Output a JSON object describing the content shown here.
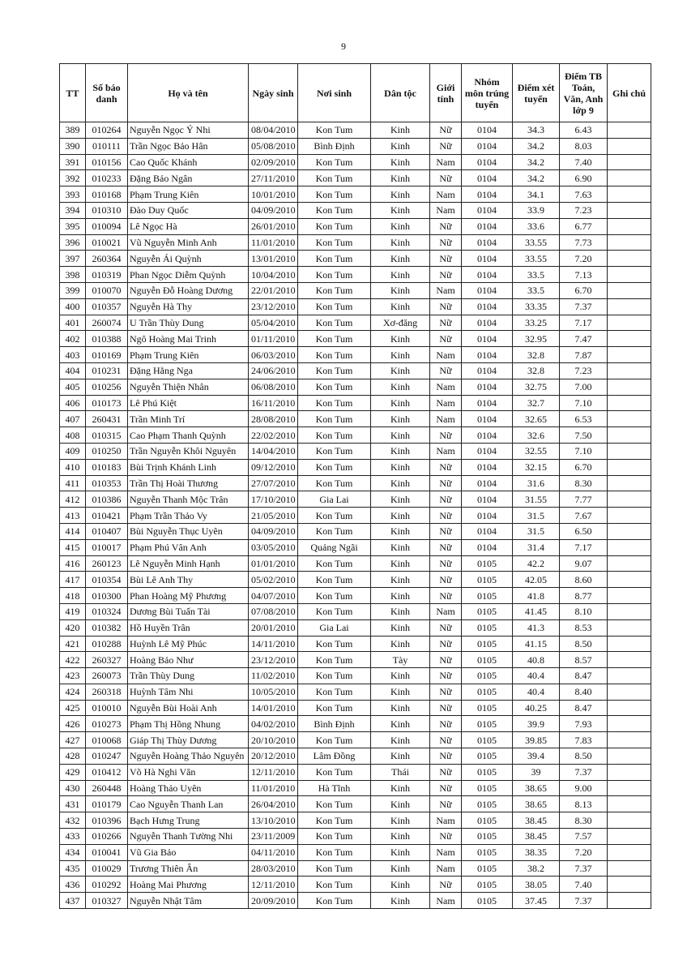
{
  "page_number": "9",
  "table": {
    "headers": [
      "TT",
      "Số báo danh",
      "Họ và tên",
      "Ngày sinh",
      "Nơi sinh",
      "Dân tộc",
      "Giới tính",
      "Nhóm môn trúng tuyển",
      "Điểm xét tuyển",
      "Điểm TB Toán, Văn, Anh lớp 9",
      "Ghi chú"
    ],
    "rows": [
      [
        "389",
        "010264",
        "Nguyễn Ngọc Ý Nhi",
        "08/04/2010",
        "Kon Tum",
        "Kinh",
        "Nữ",
        "0104",
        "34.3",
        "6.43",
        ""
      ],
      [
        "390",
        "010111",
        "Trần Ngọc Bảo Hân",
        "05/08/2010",
        "Bình Định",
        "Kinh",
        "Nữ",
        "0104",
        "34.2",
        "8.03",
        ""
      ],
      [
        "391",
        "010156",
        "Cao Quốc Khánh",
        "02/09/2010",
        "Kon Tum",
        "Kinh",
        "Nam",
        "0104",
        "34.2",
        "7.40",
        ""
      ],
      [
        "392",
        "010233",
        "Đặng Bảo Ngân",
        "27/11/2010",
        "Kon Tum",
        "Kinh",
        "Nữ",
        "0104",
        "34.2",
        "6.90",
        ""
      ],
      [
        "393",
        "010168",
        "Phạm Trung Kiên",
        "10/01/2010",
        "Kon Tum",
        "Kinh",
        "Nam",
        "0104",
        "34.1",
        "7.63",
        ""
      ],
      [
        "394",
        "010310",
        "Đào Duy Quốc",
        "04/09/2010",
        "Kon Tum",
        "Kinh",
        "Nam",
        "0104",
        "33.9",
        "7.23",
        ""
      ],
      [
        "395",
        "010094",
        "Lê Ngọc Hà",
        "26/01/2010",
        "Kon Tum",
        "Kinh",
        "Nữ",
        "0104",
        "33.6",
        "6.77",
        ""
      ],
      [
        "396",
        "010021",
        "Vũ Nguyễn Minh Anh",
        "11/01/2010",
        "Kon Tum",
        "Kinh",
        "Nữ",
        "0104",
        "33.55",
        "7.73",
        ""
      ],
      [
        "397",
        "260364",
        "Nguyễn Ái Quỳnh",
        "13/01/2010",
        "Kon Tum",
        "Kinh",
        "Nữ",
        "0104",
        "33.55",
        "7.20",
        ""
      ],
      [
        "398",
        "010319",
        "Phan Ngọc Diễm Quỳnh",
        "10/04/2010",
        "Kon Tum",
        "Kinh",
        "Nữ",
        "0104",
        "33.5",
        "7.13",
        ""
      ],
      [
        "399",
        "010070",
        "Nguyễn Đỗ Hoàng Dương",
        "22/01/2010",
        "Kon Tum",
        "Kinh",
        "Nam",
        "0104",
        "33.5",
        "6.70",
        ""
      ],
      [
        "400",
        "010357",
        "Nguyễn Hà Thy",
        "23/12/2010",
        "Kon Tum",
        "Kinh",
        "Nữ",
        "0104",
        "33.35",
        "7.37",
        ""
      ],
      [
        "401",
        "260074",
        "U Trần Thùy Dung",
        "05/04/2010",
        "Kon Tum",
        "Xơ-đăng",
        "Nữ",
        "0104",
        "33.25",
        "7.17",
        ""
      ],
      [
        "402",
        "010388",
        "Ngô Hoàng Mai Trinh",
        "01/11/2010",
        "Kon Tum",
        "Kinh",
        "Nữ",
        "0104",
        "32.95",
        "7.47",
        ""
      ],
      [
        "403",
        "010169",
        "Phạm Trung Kiên",
        "06/03/2010",
        "Kon Tum",
        "Kinh",
        "Nam",
        "0104",
        "32.8",
        "7.87",
        ""
      ],
      [
        "404",
        "010231",
        "Đặng Hằng Nga",
        "24/06/2010",
        "Kon Tum",
        "Kinh",
        "Nữ",
        "0104",
        "32.8",
        "7.23",
        ""
      ],
      [
        "405",
        "010256",
        "Nguyễn Thiện Nhân",
        "06/08/2010",
        "Kon Tum",
        "Kinh",
        "Nam",
        "0104",
        "32.75",
        "7.00",
        ""
      ],
      [
        "406",
        "010173",
        "Lê Phú Kiệt",
        "16/11/2010",
        "Kon Tum",
        "Kinh",
        "Nam",
        "0104",
        "32.7",
        "7.10",
        ""
      ],
      [
        "407",
        "260431",
        "Trần Minh Trí",
        "28/08/2010",
        "Kon Tum",
        "Kinh",
        "Nam",
        "0104",
        "32.65",
        "6.53",
        ""
      ],
      [
        "408",
        "010315",
        "Cao Phạm Thanh Quỳnh",
        "22/02/2010",
        "Kon Tum",
        "Kinh",
        "Nữ",
        "0104",
        "32.6",
        "7.50",
        ""
      ],
      [
        "409",
        "010250",
        "Trần Nguyễn Khôi Nguyên",
        "14/04/2010",
        "Kon Tum",
        "Kinh",
        "Nam",
        "0104",
        "32.55",
        "7.10",
        ""
      ],
      [
        "410",
        "010183",
        "Bùi Trịnh Khánh Linh",
        "09/12/2010",
        "Kon Tum",
        "Kinh",
        "Nữ",
        "0104",
        "32.15",
        "6.70",
        ""
      ],
      [
        "411",
        "010353",
        "Trần Thị Hoài Thương",
        "27/07/2010",
        "Kon Tum",
        "Kinh",
        "Nữ",
        "0104",
        "31.6",
        "8.30",
        ""
      ],
      [
        "412",
        "010386",
        "Nguyễn Thanh Mộc Trân",
        "17/10/2010",
        "Gia Lai",
        "Kinh",
        "Nữ",
        "0104",
        "31.55",
        "7.77",
        ""
      ],
      [
        "413",
        "010421",
        "Phạm Trần Thảo Vy",
        "21/05/2010",
        "Kon Tum",
        "Kinh",
        "Nữ",
        "0104",
        "31.5",
        "7.67",
        ""
      ],
      [
        "414",
        "010407",
        "Bùi Nguyễn Thục Uyên",
        "04/09/2010",
        "Kon Tum",
        "Kinh",
        "Nữ",
        "0104",
        "31.5",
        "6.50",
        ""
      ],
      [
        "415",
        "010017",
        "Phạm Phú Vân Anh",
        "03/05/2010",
        "Quảng Ngãi",
        "Kinh",
        "Nữ",
        "0104",
        "31.4",
        "7.17",
        ""
      ],
      [
        "416",
        "260123",
        "Lê Nguyễn Minh Hạnh",
        "01/01/2010",
        "Kon Tum",
        "Kinh",
        "Nữ",
        "0105",
        "42.2",
        "9.07",
        ""
      ],
      [
        "417",
        "010354",
        "Bùi Lê Anh Thy",
        "05/02/2010",
        "Kon Tum",
        "Kinh",
        "Nữ",
        "0105",
        "42.05",
        "8.60",
        ""
      ],
      [
        "418",
        "010300",
        "Phan Hoàng Mỹ Phương",
        "04/07/2010",
        "Kon Tum",
        "Kinh",
        "Nữ",
        "0105",
        "41.8",
        "8.77",
        ""
      ],
      [
        "419",
        "010324",
        "Dương Bùi Tuấn Tài",
        "07/08/2010",
        "Kon Tum",
        "Kinh",
        "Nam",
        "0105",
        "41.45",
        "8.10",
        ""
      ],
      [
        "420",
        "010382",
        "Hồ Huyền Trân",
        "20/01/2010",
        "Gia Lai",
        "Kinh",
        "Nữ",
        "0105",
        "41.3",
        "8.53",
        ""
      ],
      [
        "421",
        "010288",
        "Huỳnh Lê Mỹ Phúc",
        "14/11/2010",
        "Kon Tum",
        "Kinh",
        "Nữ",
        "0105",
        "41.15",
        "8.50",
        ""
      ],
      [
        "422",
        "260327",
        "Hoàng Bảo Như",
        "23/12/2010",
        "Kon Tum",
        "Tày",
        "Nữ",
        "0105",
        "40.8",
        "8.57",
        ""
      ],
      [
        "423",
        "260073",
        "Trần Thùy Dung",
        "11/02/2010",
        "Kon Tum",
        "Kinh",
        "Nữ",
        "0105",
        "40.4",
        "8.47",
        ""
      ],
      [
        "424",
        "260318",
        "Huỳnh Tâm Nhi",
        "10/05/2010",
        "Kon Tum",
        "Kinh",
        "Nữ",
        "0105",
        "40.4",
        "8.40",
        ""
      ],
      [
        "425",
        "010010",
        "Nguyễn Bùi Hoài Anh",
        "14/01/2010",
        "Kon Tum",
        "Kinh",
        "Nữ",
        "0105",
        "40.25",
        "8.47",
        ""
      ],
      [
        "426",
        "010273",
        "Phạm Thị Hồng Nhung",
        "04/02/2010",
        "Bình Định",
        "Kinh",
        "Nữ",
        "0105",
        "39.9",
        "7.93",
        ""
      ],
      [
        "427",
        "010068",
        "Giáp Thị Thùy Dương",
        "20/10/2010",
        "Kon Tum",
        "Kinh",
        "Nữ",
        "0105",
        "39.85",
        "7.83",
        ""
      ],
      [
        "428",
        "010247",
        "Nguyễn Hoàng Thảo Nguyên",
        "20/12/2010",
        "Lâm Đồng",
        "Kinh",
        "Nữ",
        "0105",
        "39.4",
        "8.50",
        ""
      ],
      [
        "429",
        "010412",
        "Võ Hà Nghi Văn",
        "12/11/2010",
        "Kon Tum",
        "Thái",
        "Nữ",
        "0105",
        "39",
        "7.37",
        ""
      ],
      [
        "430",
        "260448",
        "Hoàng Thảo Uyên",
        "11/01/2010",
        "Hà Tĩnh",
        "Kinh",
        "Nữ",
        "0105",
        "38.65",
        "9.00",
        ""
      ],
      [
        "431",
        "010179",
        "Cao Nguyễn Thanh Lan",
        "26/04/2010",
        "Kon Tum",
        "Kinh",
        "Nữ",
        "0105",
        "38.65",
        "8.13",
        ""
      ],
      [
        "432",
        "010396",
        "Bạch Hưng Trung",
        "13/10/2010",
        "Kon Tum",
        "Kinh",
        "Nam",
        "0105",
        "38.45",
        "8.30",
        ""
      ],
      [
        "433",
        "010266",
        "Nguyễn Thanh Tường Nhi",
        "23/11/2009",
        "Kon Tum",
        "Kinh",
        "Nữ",
        "0105",
        "38.45",
        "7.57",
        ""
      ],
      [
        "434",
        "010041",
        "Vũ Gia Bảo",
        "04/11/2010",
        "Kon Tum",
        "Kinh",
        "Nam",
        "0105",
        "38.35",
        "7.20",
        ""
      ],
      [
        "435",
        "010029",
        "Trương Thiên Ân",
        "28/03/2010",
        "Kon Tum",
        "Kinh",
        "Nam",
        "0105",
        "38.2",
        "7.37",
        ""
      ],
      [
        "436",
        "010292",
        "Hoàng Mai Phương",
        "12/11/2010",
        "Kon Tum",
        "Kinh",
        "Nữ",
        "0105",
        "38.05",
        "7.40",
        ""
      ],
      [
        "437",
        "010327",
        "Nguyễn Nhật Tâm",
        "20/09/2010",
        "Kon Tum",
        "Kinh",
        "Nam",
        "0105",
        "37.45",
        "7.37",
        ""
      ]
    ]
  }
}
